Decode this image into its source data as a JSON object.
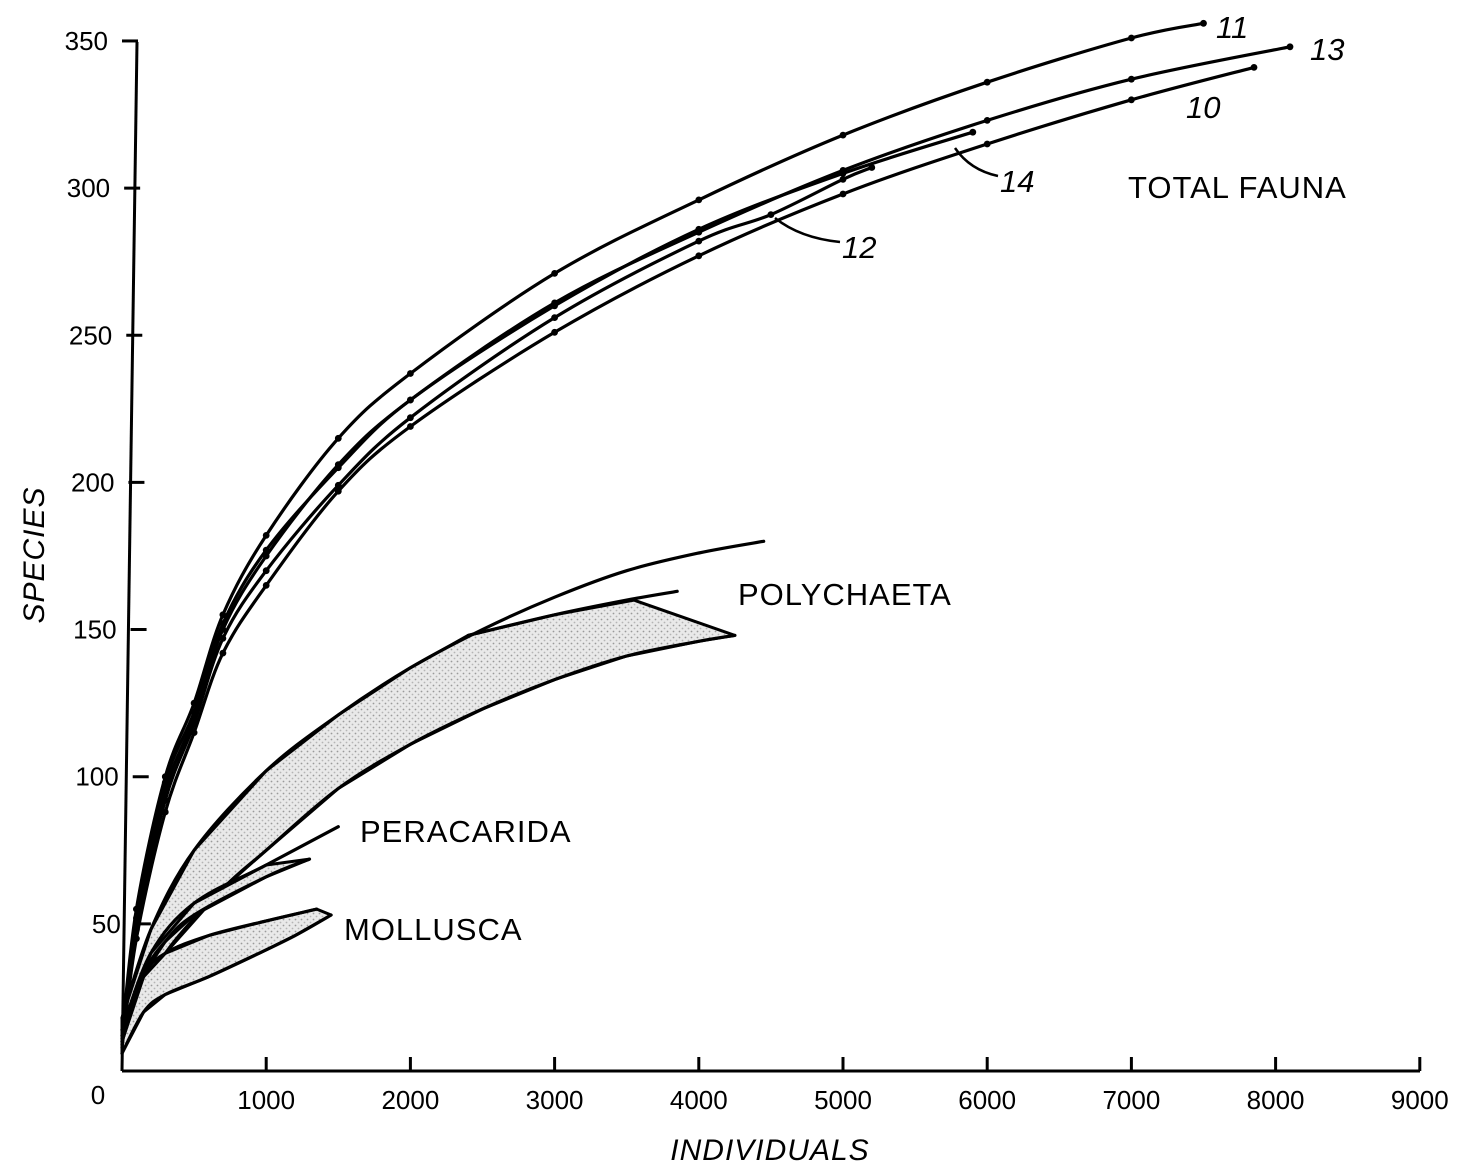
{
  "chart_data": {
    "type": "line",
    "xlabel": "INDIVIDUALS",
    "ylabel": "SPECIES",
    "origin_label": "0",
    "xlim": [
      0,
      9000
    ],
    "ylim": [
      0,
      350
    ],
    "x_ticks": [
      1000,
      2000,
      3000,
      4000,
      5000,
      6000,
      7000,
      8000,
      9000
    ],
    "x_tick_labels": [
      "1000",
      "2000",
      "3000",
      "4000",
      "5000",
      "6000",
      "7000",
      "8000",
      "9000"
    ],
    "y_ticks": [
      50,
      100,
      150,
      200,
      250,
      300,
      350
    ],
    "y_tick_labels": [
      "50",
      "100",
      "150",
      "200",
      "250",
      "300",
      "350"
    ],
    "grid": false,
    "group_labels": {
      "total": "TOTAL FAUNA",
      "poly": "POLYCHAETA",
      "pera": "PERACARIDA",
      "moll": "MOLLUSCA"
    },
    "series": [
      {
        "name": "11",
        "points": [
          [
            0,
            12
          ],
          [
            100,
            55
          ],
          [
            300,
            100
          ],
          [
            500,
            125
          ],
          [
            700,
            155
          ],
          [
            1000,
            182
          ],
          [
            1500,
            215
          ],
          [
            2000,
            237
          ],
          [
            3000,
            271
          ],
          [
            4000,
            296
          ],
          [
            5000,
            318
          ],
          [
            6000,
            336
          ],
          [
            7000,
            351
          ],
          [
            7500,
            356
          ]
        ]
      },
      {
        "name": "13",
        "points": [
          [
            0,
            10
          ],
          [
            100,
            50
          ],
          [
            300,
            95
          ],
          [
            500,
            120
          ],
          [
            700,
            150
          ],
          [
            1000,
            175
          ],
          [
            1500,
            206
          ],
          [
            2000,
            228
          ],
          [
            3000,
            261
          ],
          [
            4000,
            285
          ],
          [
            5000,
            306
          ],
          [
            6000,
            323
          ],
          [
            7000,
            337
          ],
          [
            8100,
            348
          ]
        ]
      },
      {
        "name": "10",
        "points": [
          [
            0,
            8
          ],
          [
            100,
            45
          ],
          [
            300,
            88
          ],
          [
            500,
            115
          ],
          [
            700,
            142
          ],
          [
            1000,
            165
          ],
          [
            1500,
            197
          ],
          [
            2000,
            219
          ],
          [
            3000,
            251
          ],
          [
            4000,
            277
          ],
          [
            5000,
            298
          ],
          [
            6000,
            315
          ],
          [
            7000,
            330
          ],
          [
            7850,
            341
          ]
        ]
      },
      {
        "name": "12",
        "points": [
          [
            0,
            9
          ],
          [
            100,
            48
          ],
          [
            300,
            92
          ],
          [
            500,
            118
          ],
          [
            700,
            147
          ],
          [
            1000,
            170
          ],
          [
            1500,
            199
          ],
          [
            2000,
            222
          ],
          [
            3000,
            256
          ],
          [
            4000,
            282
          ],
          [
            4500,
            291
          ],
          [
            5000,
            303
          ],
          [
            5200,
            307
          ]
        ]
      },
      {
        "name": "14",
        "points": [
          [
            0,
            11
          ],
          [
            100,
            52
          ],
          [
            300,
            98
          ],
          [
            500,
            122
          ],
          [
            700,
            152
          ],
          [
            1000,
            177
          ],
          [
            1500,
            205
          ],
          [
            2000,
            228
          ],
          [
            3000,
            260
          ],
          [
            4000,
            286
          ],
          [
            5000,
            305
          ],
          [
            5900,
            319
          ]
        ]
      }
    ],
    "bands": {
      "polychaeta": {
        "upper": [
          [
            0,
            18
          ],
          [
            200,
            48
          ],
          [
            500,
            75
          ],
          [
            1000,
            102
          ],
          [
            1500,
            121
          ],
          [
            2000,
            137
          ],
          [
            2500,
            150
          ],
          [
            3000,
            161
          ],
          [
            3500,
            170
          ],
          [
            4000,
            176
          ],
          [
            4450,
            180
          ]
        ],
        "inner": [
          [
            2400,
            148
          ],
          [
            3000,
            155
          ],
          [
            3500,
            160
          ],
          [
            3850,
            163
          ]
        ],
        "lower": [
          [
            0,
            14
          ],
          [
            300,
            40
          ],
          [
            700,
            62
          ],
          [
            1000,
            75
          ],
          [
            1500,
            96
          ],
          [
            2000,
            111
          ],
          [
            2500,
            123
          ],
          [
            3000,
            133
          ],
          [
            3500,
            141
          ],
          [
            4000,
            146
          ],
          [
            4250,
            148
          ]
        ],
        "notch": [
          [
            2400,
            148
          ],
          [
            3000,
            155
          ],
          [
            3550,
            160
          ],
          [
            4250,
            148
          ]
        ]
      },
      "peracarida": {
        "upper": [
          [
            0,
            14
          ],
          [
            200,
            40
          ],
          [
            500,
            57
          ],
          [
            1000,
            70
          ],
          [
            1500,
            83
          ]
        ],
        "lower": [
          [
            0,
            12
          ],
          [
            150,
            33
          ],
          [
            300,
            44
          ],
          [
            500,
            53
          ],
          [
            1000,
            66
          ],
          [
            1300,
            72
          ]
        ]
      },
      "mollusca": {
        "upper": [
          [
            0,
            10
          ],
          [
            150,
            32
          ],
          [
            300,
            40
          ],
          [
            600,
            46
          ],
          [
            1000,
            51
          ],
          [
            1350,
            55
          ]
        ],
        "lower": [
          [
            0,
            6
          ],
          [
            150,
            20
          ],
          [
            300,
            26
          ],
          [
            600,
            32
          ],
          [
            950,
            40
          ],
          [
            1200,
            46
          ],
          [
            1450,
            53
          ]
        ]
      }
    }
  }
}
